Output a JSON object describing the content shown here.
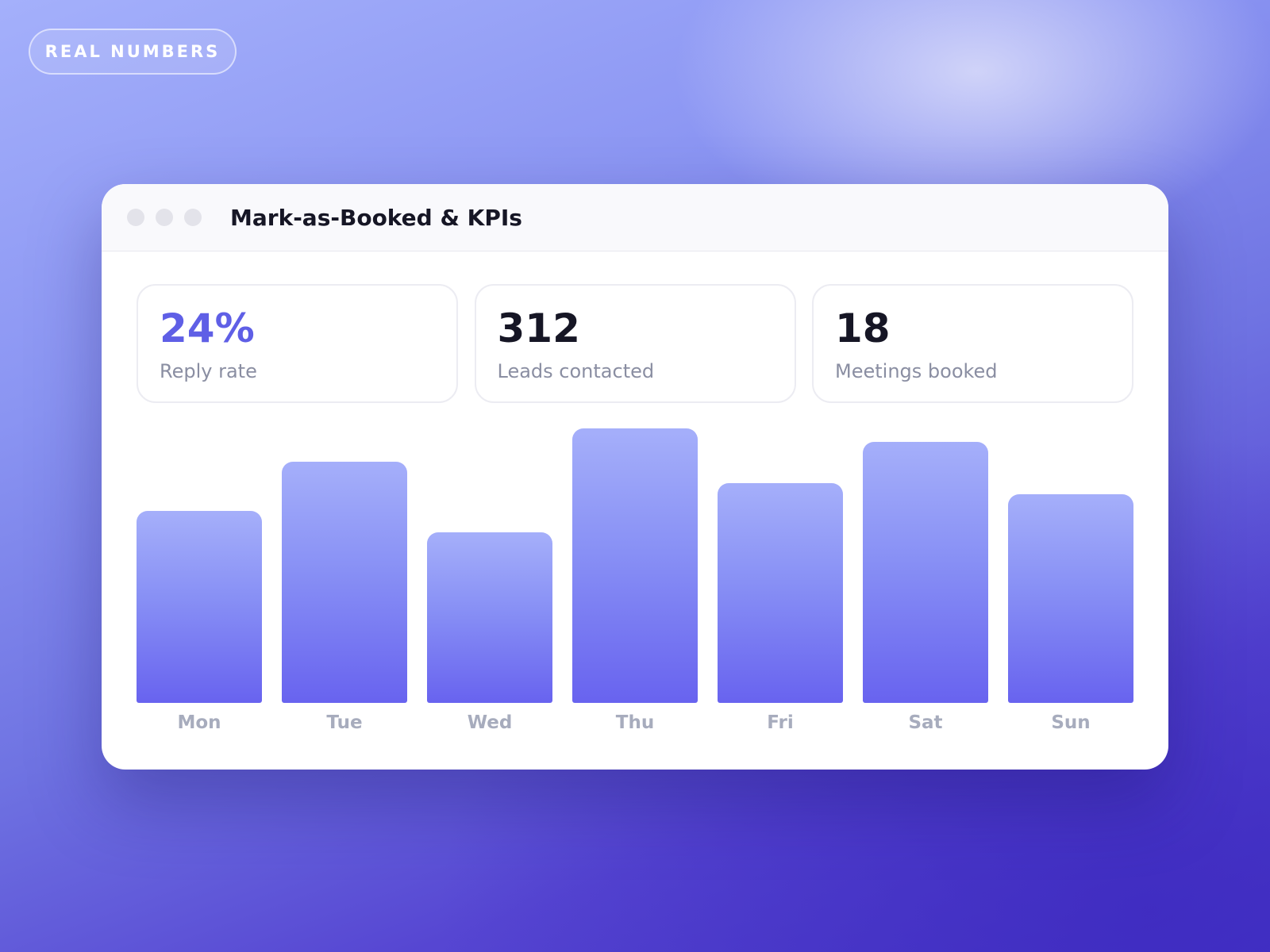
{
  "badge": {
    "label": "REAL NUMBERS"
  },
  "window": {
    "title": "Mark-as-Booked & KPIs"
  },
  "kpis": [
    {
      "value": "24%",
      "label": "Reply rate"
    },
    {
      "value": "312",
      "label": "Leads contacted"
    },
    {
      "value": "18",
      "label": "Meetings booked"
    }
  ],
  "colors": {
    "accent": "#5f5fe6",
    "bar_top": "#a5affa",
    "bar_bottom": "#6863ef"
  },
  "chart_data": {
    "type": "bar",
    "categories": [
      "Mon",
      "Tue",
      "Wed",
      "Thu",
      "Fri",
      "Sat",
      "Sun"
    ],
    "values": [
      70,
      88,
      62,
      100,
      80,
      95,
      76
    ],
    "ylim": [
      0,
      100
    ],
    "grid": false
  }
}
